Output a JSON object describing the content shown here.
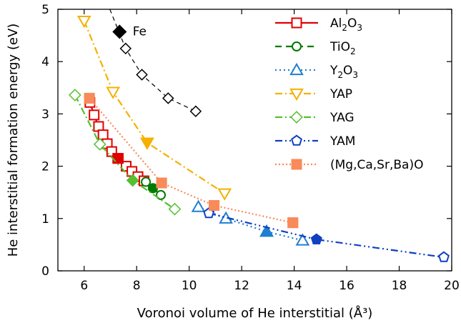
{
  "chart_data": {
    "type": "scatter",
    "xlabel": "Voronoi volume of He interstitial (Å³)",
    "ylabel": "He interstitial formation energy (eV)",
    "xlim": [
      5,
      20
    ],
    "ylim": [
      0,
      5
    ],
    "xticks": [
      6,
      8,
      10,
      12,
      14,
      16,
      18,
      20
    ],
    "yticks": [
      0,
      1,
      2,
      3,
      4,
      5
    ],
    "grid": false,
    "legend_position": "top-right",
    "annotations": [
      {
        "text": "Fe",
        "x": 7.85,
        "y": 4.58
      }
    ],
    "series": [
      {
        "name": "Al2O3",
        "label_main": "Al",
        "label_sub1": "2",
        "label_mid": "O",
        "label_sub2": "3",
        "color": "#e00000",
        "marker": "square",
        "line": "solid",
        "points": [
          [
            6.22,
            3.22
          ],
          [
            6.38,
            2.98
          ],
          [
            6.55,
            2.76
          ],
          [
            6.72,
            2.6
          ],
          [
            6.88,
            2.43
          ],
          [
            7.05,
            2.28
          ],
          [
            7.28,
            2.15
          ],
          [
            7.6,
            2.0
          ],
          [
            7.82,
            1.9
          ],
          [
            8.05,
            1.8
          ],
          [
            8.28,
            1.72
          ]
        ],
        "filled": [
          [
            7.3,
            2.15
          ]
        ]
      },
      {
        "name": "TiO2",
        "label_main": "TiO",
        "label_sub1": "2",
        "label_mid": "",
        "label_sub2": "",
        "color": "#007a00",
        "marker": "circle",
        "line": "dashed",
        "points": [
          [
            8.35,
            1.7
          ],
          [
            8.62,
            1.58
          ],
          [
            8.92,
            1.45
          ]
        ],
        "filled": [
          [
            8.62,
            1.58
          ]
        ]
      },
      {
        "name": "Y2O3",
        "label_main": "Y",
        "label_sub1": "2",
        "label_mid": "O",
        "label_sub2": "3",
        "color": "#1f7fd0",
        "marker": "triangle",
        "line": "dotted",
        "points": [
          [
            10.35,
            1.22
          ],
          [
            11.4,
            1.0
          ],
          [
            12.95,
            0.75
          ],
          [
            14.32,
            0.58
          ]
        ],
        "filled": [
          [
            12.95,
            0.75
          ]
        ]
      },
      {
        "name": "YAP",
        "label_main": "YAP",
        "label_sub1": "",
        "label_mid": "",
        "label_sub2": "",
        "color": "#f5b000",
        "marker": "triangle-down",
        "line": "dashdot",
        "points": [
          [
            6.0,
            4.78
          ],
          [
            7.1,
            3.42
          ],
          [
            8.4,
            2.45
          ],
          [
            11.35,
            1.48
          ]
        ],
        "filled": [
          [
            8.4,
            2.45
          ]
        ]
      },
      {
        "name": "YAG",
        "label_main": "YAG",
        "label_sub1": "",
        "label_mid": "",
        "label_sub2": "",
        "color": "#55c030",
        "marker": "diamond",
        "line": "dashdot",
        "points": [
          [
            5.65,
            3.36
          ],
          [
            6.6,
            2.42
          ],
          [
            7.85,
            1.73
          ],
          [
            9.45,
            1.18
          ]
        ],
        "filled": [
          [
            7.85,
            1.73
          ]
        ]
      },
      {
        "name": "YAM",
        "label_main": "YAM",
        "label_sub1": "",
        "label_mid": "",
        "label_sub2": "",
        "color": "#1040c0",
        "marker": "pentagon",
        "line": "dashdotdot",
        "points": [
          [
            10.75,
            1.1
          ],
          [
            14.85,
            0.6
          ],
          [
            19.7,
            0.26
          ]
        ],
        "filled": [
          [
            14.85,
            0.6
          ]
        ]
      },
      {
        "name": "(Mg,Ca,Sr,Ba)O",
        "label_main": "(Mg,Ca,Sr,Ba)O",
        "label_sub1": "",
        "label_mid": "",
        "label_sub2": "",
        "color": "#f98a5a",
        "marker": "square-filled",
        "line": "dotted-fine",
        "points": [
          [
            6.2,
            3.3
          ],
          [
            8.95,
            1.68
          ],
          [
            10.95,
            1.25
          ],
          [
            13.95,
            0.92
          ]
        ],
        "filled": [
          [
            6.2,
            3.3
          ],
          [
            8.95,
            1.68
          ],
          [
            10.95,
            1.25
          ],
          [
            13.95,
            0.92
          ]
        ]
      },
      {
        "name": "Fe",
        "label_main": "",
        "label_sub1": "",
        "label_mid": "",
        "label_sub2": "",
        "color": "#000000",
        "marker": "diamond",
        "line": "dashed-black",
        "points": [
          [
            7.58,
            4.25
          ],
          [
            8.2,
            3.75
          ],
          [
            9.2,
            3.3
          ],
          [
            10.25,
            3.05
          ]
        ],
        "filled": [
          [
            7.35,
            4.57
          ]
        ],
        "line_start": [
          6.98,
          5.0
        ]
      }
    ]
  }
}
